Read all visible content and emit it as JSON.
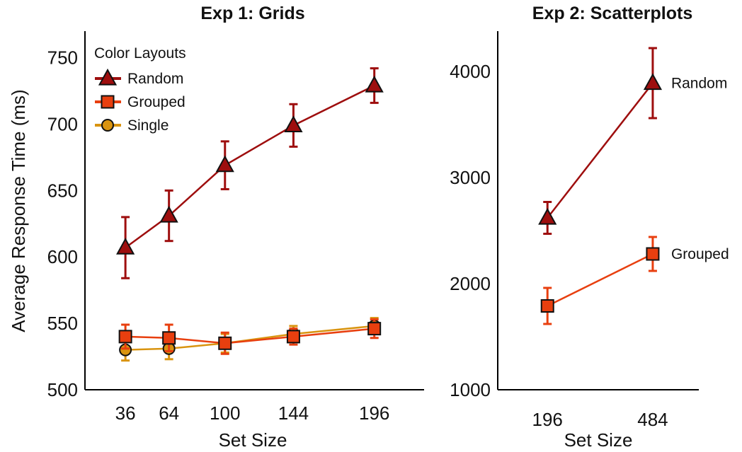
{
  "colors": {
    "Random": "#9e0e0e",
    "Grouped": "#e83f0f",
    "Single": "#d99410"
  },
  "markers": {
    "Random": "triangle",
    "Grouped": "square",
    "Single": "circle"
  },
  "legend": {
    "title": "Color Layouts",
    "entries": [
      "Random",
      "Grouped",
      "Single"
    ],
    "placement": "top-left"
  },
  "chart_data": [
    {
      "type": "line",
      "title": "Exp 1: Grids",
      "xlabel": "Set Size",
      "ylabel": "Average Response Time (ms)",
      "x": [
        36,
        64,
        100,
        144,
        196
      ],
      "x_tick_labels": [
        "36",
        "64",
        "100",
        "144",
        "196"
      ],
      "xlim": [
        10,
        228
      ],
      "ylim": [
        500,
        770
      ],
      "y_ticks": [
        500,
        550,
        600,
        650,
        700,
        750
      ],
      "grid": false,
      "series": [
        {
          "name": "Random",
          "values": [
            607,
            631,
            669,
            699,
            729
          ],
          "err": [
            23,
            19,
            18,
            16,
            13
          ]
        },
        {
          "name": "Grouped",
          "values": [
            540,
            539,
            535,
            540,
            546
          ],
          "err": [
            9,
            10,
            8,
            6,
            7
          ]
        },
        {
          "name": "Single",
          "values": [
            530,
            531,
            535,
            542,
            548
          ],
          "err": [
            8,
            8,
            7,
            6,
            6
          ]
        }
      ]
    },
    {
      "type": "line",
      "title": "Exp 2: Scatterplots",
      "xlabel": "Set Size",
      "ylabel": "",
      "x": [
        196,
        484
      ],
      "x_tick_labels": [
        "196",
        "484"
      ],
      "xlim": [
        60,
        610
      ],
      "ylim": [
        1000,
        4380
      ],
      "y_ticks": [
        1000,
        2000,
        3000,
        4000
      ],
      "grid": false,
      "series": [
        {
          "name": "Random",
          "values": [
            2620,
            3890
          ],
          "err": [
            150,
            330
          ],
          "label": "Random"
        },
        {
          "name": "Grouped",
          "values": [
            1790,
            2280
          ],
          "err": [
            170,
            160
          ],
          "label": "Grouped"
        }
      ]
    }
  ]
}
